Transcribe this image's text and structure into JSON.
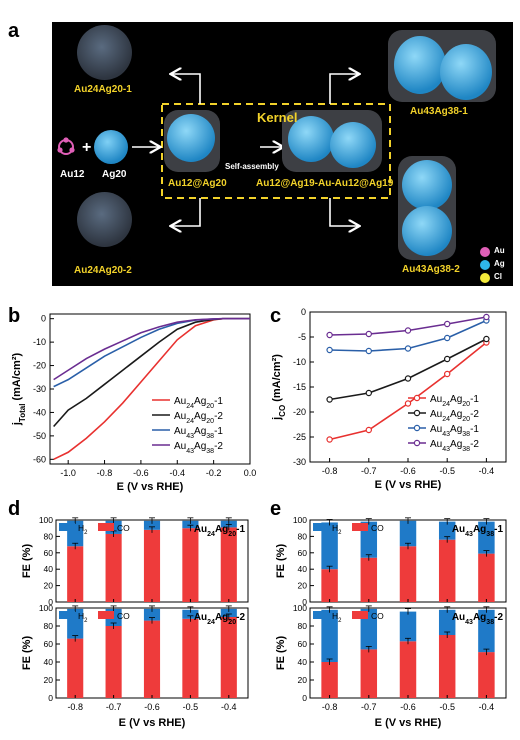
{
  "panel_labels": {
    "a": "a",
    "b": "b",
    "c": "c",
    "d": "d",
    "e": "e"
  },
  "panel_a": {
    "kernel_title": "Kernel",
    "self_assembly": "Self-assembly",
    "reactant_1": "Au12",
    "reactant_2": "Ag20",
    "plus": "+",
    "kernel_left": "Au12@Ag20",
    "kernel_right": "Au12@Ag19-Au-Au12@Ag19",
    "product_tl": "Au24Ag20-1",
    "product_bl": "Au24Ag20-2",
    "product_tr": "Au43Ag38-1",
    "product_br": "Au43Ag38-2",
    "legend": [
      {
        "label": "Au",
        "color": "#e05fb7"
      },
      {
        "label": "Ag",
        "color": "#2fb7ea"
      },
      {
        "label": "Cl",
        "color": "#f2ea3a"
      }
    ]
  },
  "colors": {
    "au24_1": "#e8312f",
    "au24_2": "#1a1a1a",
    "au43_1": "#2a5fa8",
    "au43_2": "#6a2d91",
    "h2": "#1f7ac8",
    "co": "#ee3b3b"
  },
  "chart_data": [
    {
      "id": "b",
      "type": "line",
      "xlabel": "E (V vs RHE)",
      "ylabel": "jTotal (mA/cm²)",
      "xlim": [
        -1.1,
        0.0
      ],
      "ylim": [
        -62,
        2
      ],
      "xticks": [
        "-1.0",
        "-0.8",
        "-0.6",
        "-0.4",
        "-0.2",
        "0.0"
      ],
      "xtick_values": [
        -1.0,
        -0.8,
        -0.6,
        -0.4,
        -0.2,
        0.0
      ],
      "yticks": [
        "0",
        "-10",
        "-20",
        "-30",
        "-40",
        "-50",
        "-60"
      ],
      "ytick_values": [
        0,
        -10,
        -20,
        -30,
        -40,
        -50,
        -60
      ],
      "legend_position": "bottom-right",
      "series": [
        {
          "name": "Au24Ag20-1",
          "x": [
            -1.08,
            -1.0,
            -0.9,
            -0.8,
            -0.7,
            -0.6,
            -0.5,
            -0.4,
            -0.3,
            -0.2,
            -0.15,
            0.0
          ],
          "y": [
            -60,
            -57,
            -51,
            -44,
            -36,
            -27,
            -18,
            -9,
            -3,
            -0.5,
            0,
            0
          ]
        },
        {
          "name": "Au24Ag20-2",
          "x": [
            -1.08,
            -1.0,
            -0.9,
            -0.8,
            -0.7,
            -0.6,
            -0.5,
            -0.4,
            -0.3,
            -0.2,
            -0.15,
            0.0
          ],
          "y": [
            -46,
            -39,
            -34,
            -28,
            -22,
            -16,
            -10,
            -4.5,
            -1.5,
            -0.3,
            0,
            0
          ]
        },
        {
          "name": "Au43Ag38-1",
          "x": [
            -1.08,
            -1.0,
            -0.9,
            -0.8,
            -0.7,
            -0.6,
            -0.5,
            -0.4,
            -0.3,
            -0.2,
            -0.15,
            0.0
          ],
          "y": [
            -29,
            -26,
            -21,
            -16,
            -12,
            -8,
            -4.5,
            -2,
            -0.6,
            -0.1,
            0,
            0
          ]
        },
        {
          "name": "Au43Ag38-2",
          "x": [
            -1.08,
            -1.0,
            -0.9,
            -0.8,
            -0.7,
            -0.6,
            -0.5,
            -0.4,
            -0.3,
            -0.2,
            -0.15,
            0.0
          ],
          "y": [
            -26,
            -22,
            -17,
            -13,
            -9.5,
            -6,
            -3.5,
            -1.5,
            -0.5,
            -0.1,
            0,
            0
          ]
        }
      ]
    },
    {
      "id": "c",
      "type": "line",
      "xlabel": "E (V vs RHE)",
      "ylabel": "jCO (mA/cm²)",
      "xlim": [
        -0.85,
        -0.35
      ],
      "ylim": [
        -30,
        0
      ],
      "xticks": [
        "-0.8",
        "-0.7",
        "-0.6",
        "-0.5",
        "-0.4"
      ],
      "xtick_values": [
        -0.8,
        -0.7,
        -0.6,
        -0.5,
        -0.4
      ],
      "yticks": [
        "0",
        "-5",
        "-10",
        "-15",
        "-20",
        "-25",
        "-30"
      ],
      "ytick_values": [
        0,
        -5,
        -10,
        -15,
        -20,
        -25,
        -30
      ],
      "legend_position": "bottom-right",
      "series": [
        {
          "name": "Au24Ag20-1",
          "x": [
            -0.8,
            -0.7,
            -0.6,
            -0.5,
            -0.4
          ],
          "y": [
            -25.5,
            -23.6,
            -18.3,
            -12.4,
            -6.1
          ]
        },
        {
          "name": "Au24Ag20-2",
          "x": [
            -0.8,
            -0.7,
            -0.6,
            -0.5,
            -0.4
          ],
          "y": [
            -17.5,
            -16.2,
            -13.3,
            -9.4,
            -5.4
          ]
        },
        {
          "name": "Au43Ag38-1",
          "x": [
            -0.8,
            -0.7,
            -0.6,
            -0.5,
            -0.4
          ],
          "y": [
            -7.6,
            -7.8,
            -7.3,
            -5.2,
            -1.7
          ]
        },
        {
          "name": "Au43Ag38-2",
          "x": [
            -0.8,
            -0.7,
            -0.6,
            -0.5,
            -0.4
          ],
          "y": [
            -4.6,
            -4.4,
            -3.7,
            -2.4,
            -1.0
          ]
        }
      ]
    },
    {
      "id": "d1",
      "type": "bar",
      "stacked": true,
      "title": "Au24Ag20-1",
      "categories": [
        "-0.8",
        "-0.7",
        "-0.6",
        "-0.5",
        "-0.4"
      ],
      "ylabel": "FE (%)",
      "ylim": [
        0,
        100
      ],
      "yticks": [
        "0",
        "20",
        "40",
        "60",
        "80",
        "100"
      ],
      "legend": [
        "H2",
        "CO"
      ],
      "series": [
        {
          "name": "CO",
          "values": [
            68,
            83,
            88,
            90,
            91
          ]
        },
        {
          "name": "H2",
          "values": [
            31,
            16,
            11,
            9,
            8
          ]
        }
      ]
    },
    {
      "id": "d2",
      "type": "bar",
      "stacked": true,
      "title": "Au24Ag20-2",
      "categories": [
        "-0.8",
        "-0.7",
        "-0.6",
        "-0.5",
        "-0.4"
      ],
      "xlabel": "E (V vs RHE)",
      "ylabel": "FE (%)",
      "ylim": [
        0,
        100
      ],
      "yticks": [
        "0",
        "20",
        "40",
        "60",
        "80",
        "100"
      ],
      "legend": [
        "H2",
        "CO"
      ],
      "series": [
        {
          "name": "CO",
          "values": [
            66,
            80,
            86,
            88,
            90
          ]
        },
        {
          "name": "H2",
          "values": [
            33,
            19,
            13,
            10,
            9
          ]
        }
      ]
    },
    {
      "id": "e1",
      "type": "bar",
      "stacked": true,
      "title": "Au43Ag38-1",
      "categories": [
        "-0.8",
        "-0.7",
        "-0.6",
        "-0.5",
        "-0.4"
      ],
      "ylabel": "FE (%)",
      "ylim": [
        0,
        100
      ],
      "yticks": [
        "0",
        "20",
        "40",
        "60",
        "80",
        "100"
      ],
      "legend": [
        "H2",
        "CO"
      ],
      "series": [
        {
          "name": "CO",
          "values": [
            40,
            54,
            68,
            76,
            59
          ]
        },
        {
          "name": "H2",
          "values": [
            57,
            44,
            31,
            22,
            39
          ]
        }
      ]
    },
    {
      "id": "e2",
      "type": "bar",
      "stacked": true,
      "title": "Au43Ag38-2",
      "categories": [
        "-0.8",
        "-0.7",
        "-0.6",
        "-0.5",
        "-0.4"
      ],
      "xlabel": "E (V vs RHE)",
      "ylabel": "FE (%)",
      "ylim": [
        0,
        100
      ],
      "yticks": [
        "0",
        "20",
        "40",
        "60",
        "80",
        "100"
      ],
      "legend": [
        "H2",
        "CO"
      ],
      "series": [
        {
          "name": "CO",
          "values": [
            40,
            54,
            63,
            70,
            51
          ]
        },
        {
          "name": "H2",
          "values": [
            58,
            45,
            33,
            28,
            47
          ]
        }
      ]
    }
  ]
}
